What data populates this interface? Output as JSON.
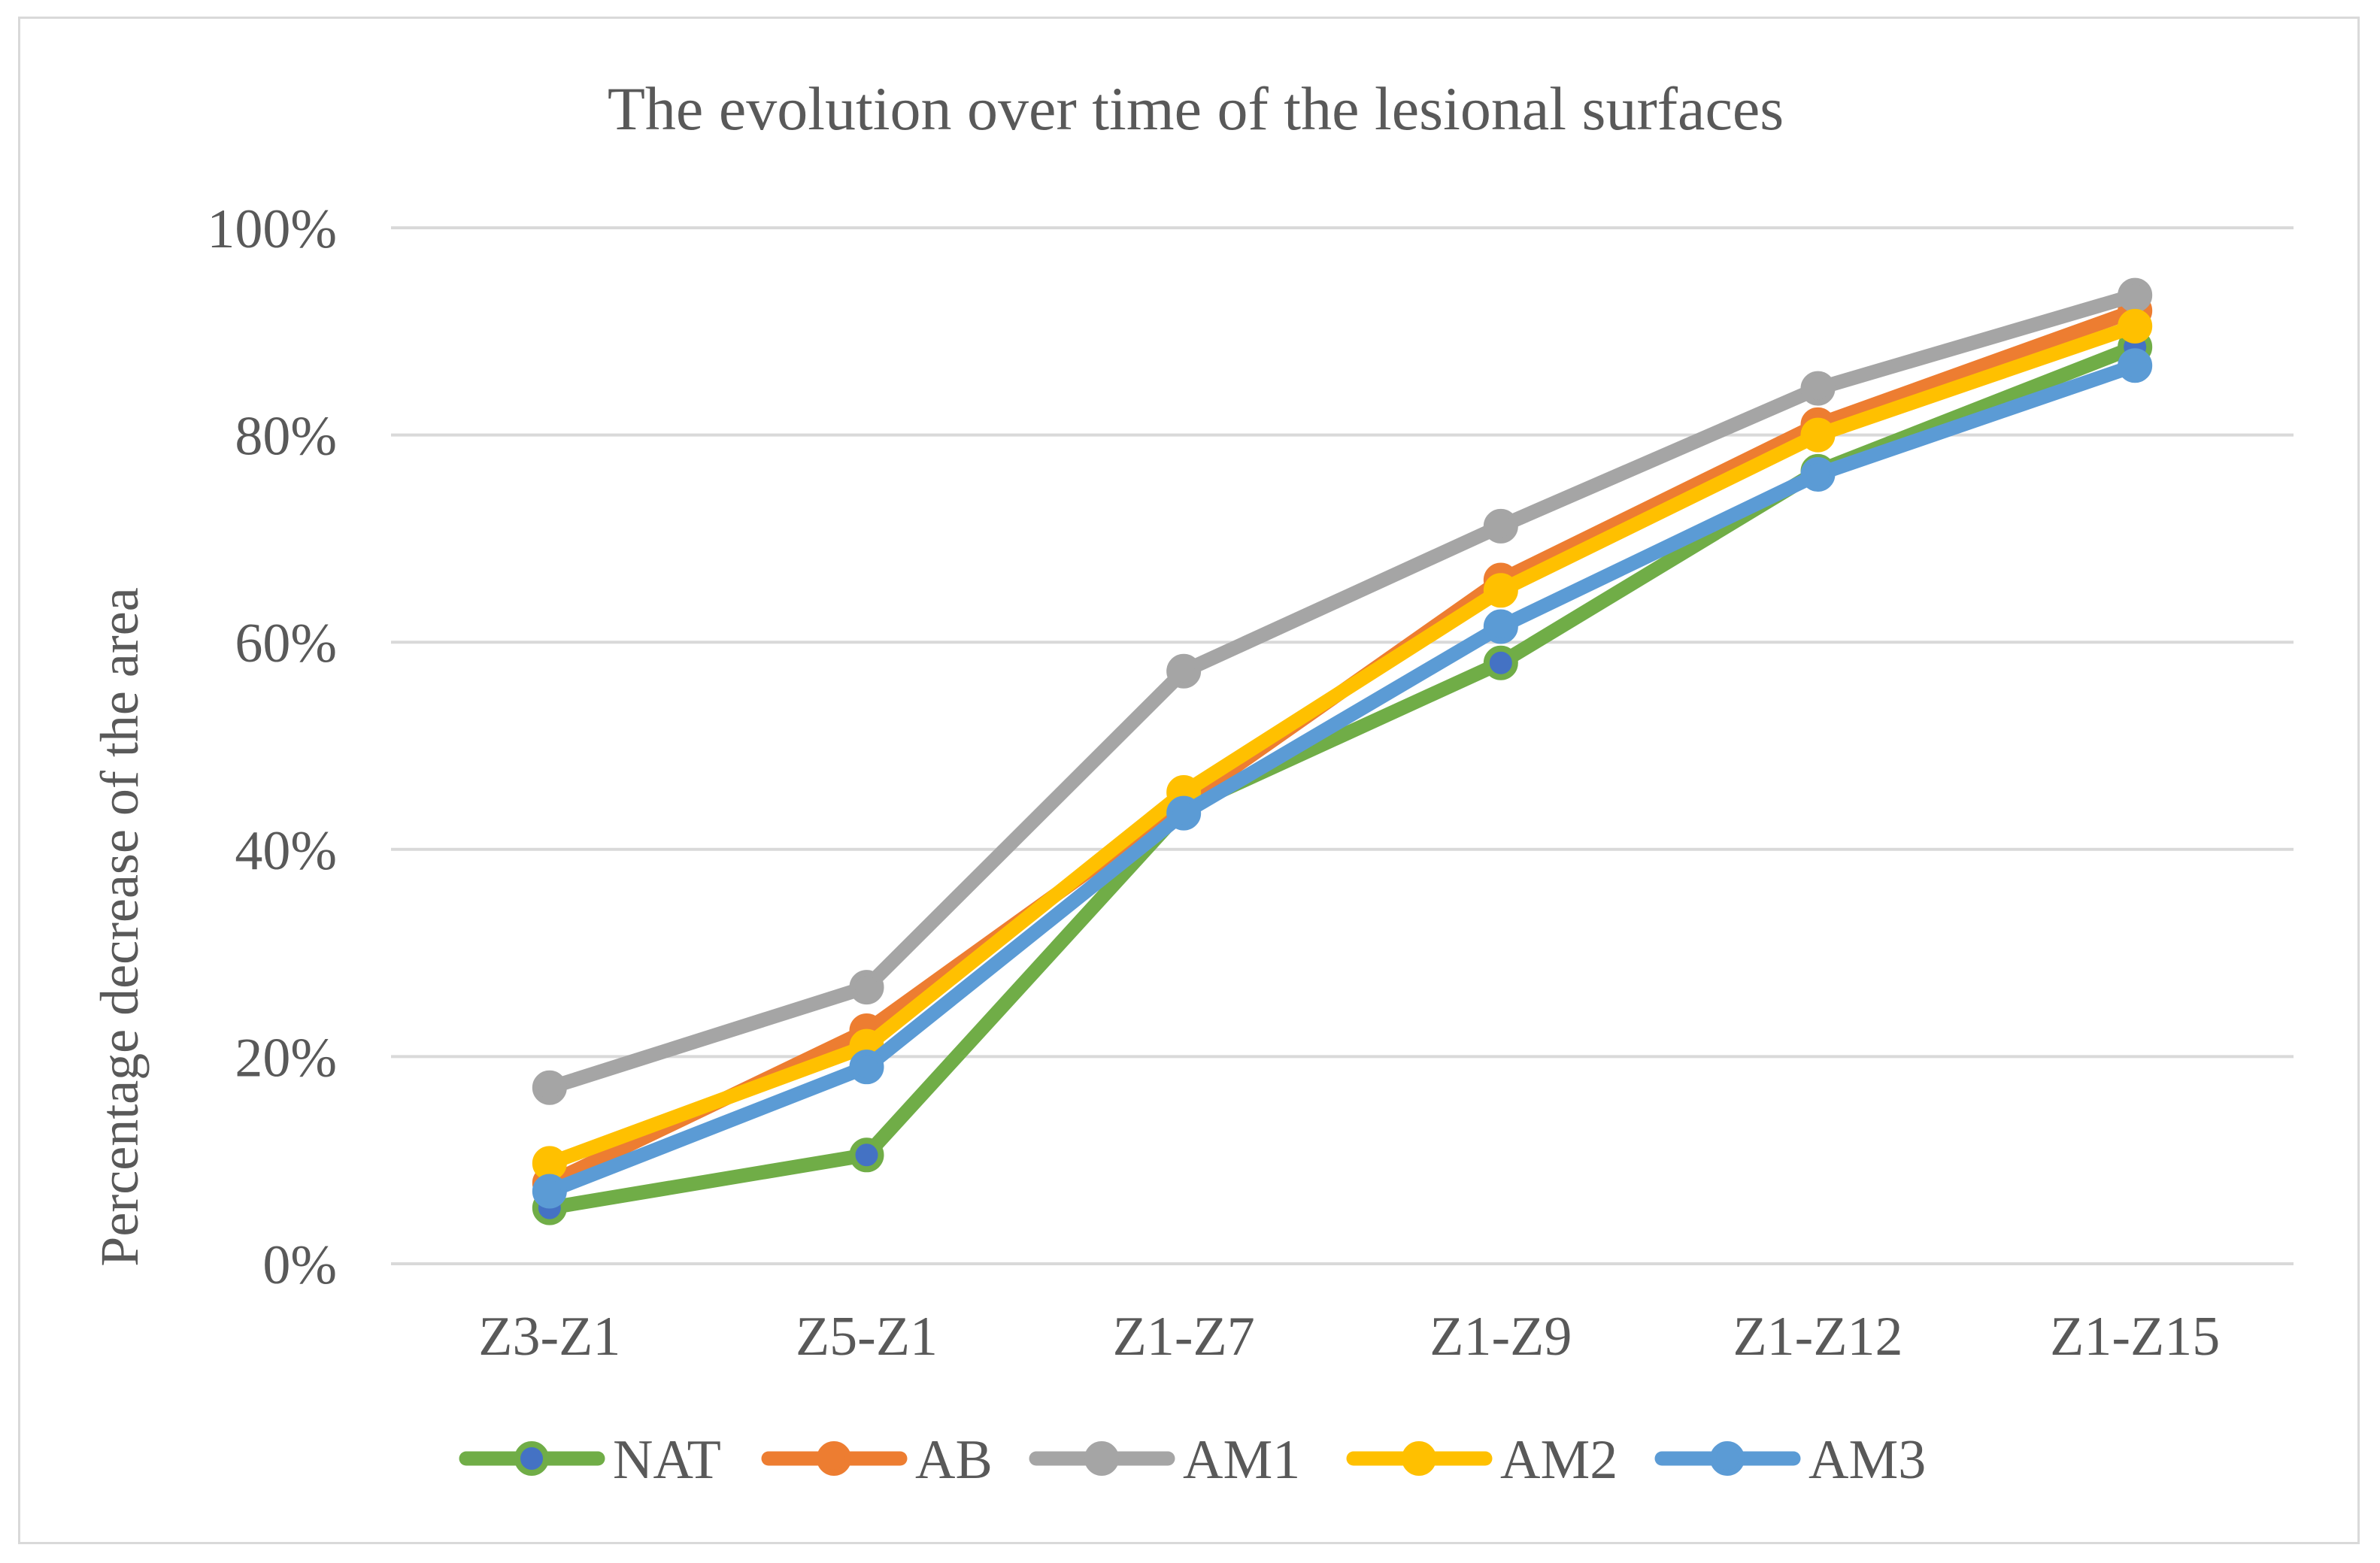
{
  "chart_data": {
    "type": "line",
    "title": "The evolution over time of the lesional surfaces",
    "xlabel": "",
    "ylabel": "Percentage decrease of the area",
    "categories": [
      "Z3-Z1",
      "Z5-Z1",
      "Z1-Z7",
      "Z1-Z9",
      "Z1-Z12",
      "Z1-Z15"
    ],
    "ylim": [
      0,
      1
    ],
    "yticks": [
      "0%",
      "20%",
      "40%",
      "60%",
      "80%",
      "100%"
    ],
    "grid": true,
    "legend_position": "bottom",
    "series": [
      {
        "name": "NAT",
        "color": "#70ad47",
        "marker_fill": "#4472c4",
        "values": [
          0.054,
          0.105,
          0.44,
          0.58,
          0.765,
          0.885
        ]
      },
      {
        "name": "AB",
        "color": "#ed7d31",
        "marker_fill": "#ed7d31",
        "values": [
          0.078,
          0.225,
          0.445,
          0.66,
          0.81,
          0.92
        ]
      },
      {
        "name": "AM1",
        "color": "#a5a5a5",
        "marker_fill": "#a5a5a5",
        "values": [
          0.17,
          0.267,
          0.572,
          0.712,
          0.845,
          0.935
        ]
      },
      {
        "name": "AM2",
        "color": "#ffc000",
        "marker_fill": "#ffc000",
        "values": [
          0.097,
          0.21,
          0.455,
          0.65,
          0.8,
          0.905
        ]
      },
      {
        "name": "AM3",
        "color": "#5b9bd5",
        "marker_fill": "#5b9bd5",
        "values": [
          0.07,
          0.19,
          0.435,
          0.615,
          0.762,
          0.867
        ]
      }
    ]
  }
}
